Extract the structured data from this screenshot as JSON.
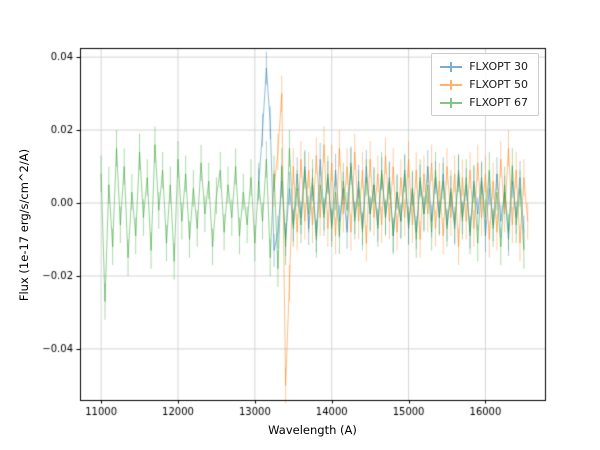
{
  "chart_data": {
    "type": "line",
    "title": "",
    "xlabel": "Wavelength (A)",
    "ylabel": "Flux (1e-17 erg/s/cm^2/A)",
    "xlim": [
      10725,
      16775
    ],
    "ylim": [
      -0.054,
      0.0425
    ],
    "xticks": [
      11000,
      12000,
      13000,
      14000,
      15000,
      16000
    ],
    "yticks": [
      -0.04,
      -0.02,
      0.0,
      0.02,
      0.04
    ],
    "grid": true,
    "grid_color": "#cccccc",
    "legend_position": "upper right",
    "series": [
      {
        "name": "FLXOPT 30",
        "color": "#1f77b4",
        "alpha": 0.5,
        "x_start": 13050,
        "x_step": 50,
        "yerr": 0.0045,
        "values": [
          0.005,
          0.02,
          0.037,
          0.022,
          -0.013,
          -0.008,
          0.006,
          -0.01,
          0.004,
          -0.006,
          0.008,
          -0.004,
          0.01,
          -0.007,
          0.005,
          -0.009,
          0.012,
          -0.003,
          0.007,
          -0.006,
          0.009,
          -0.005,
          0.004,
          -0.008,
          0.011,
          -0.004,
          0.006,
          -0.007,
          0.01,
          -0.003,
          0.005,
          -0.006,
          0.008,
          -0.004,
          0.007,
          -0.009,
          0.003,
          -0.005,
          0.009,
          -0.007,
          0.004,
          -0.008,
          0.006,
          -0.003,
          0.01,
          -0.005,
          0.007,
          -0.004,
          0.008,
          -0.006,
          0.003,
          -0.007,
          0.009,
          -0.004,
          0.005,
          -0.008,
          0.006,
          -0.003,
          0.007,
          -0.009,
          0.004,
          -0.006,
          0.008,
          -0.005,
          0.003,
          -0.01,
          0.006,
          -0.004,
          0.007,
          -0.008
        ]
      },
      {
        "name": "FLXOPT 50",
        "color": "#ff7f0e",
        "alpha": 0.5,
        "x_start": 13250,
        "x_step": 50,
        "yerr": 0.005,
        "values": [
          0.004,
          0.014,
          0.03,
          -0.05,
          -0.022,
          0.01,
          -0.008,
          0.012,
          -0.005,
          0.009,
          -0.006,
          0.013,
          -0.004,
          0.016,
          -0.007,
          0.011,
          -0.009,
          0.015,
          -0.003,
          0.01,
          -0.008,
          0.014,
          -0.005,
          0.009,
          -0.011,
          0.012,
          -0.004,
          0.008,
          -0.006,
          0.013,
          -0.005,
          0.01,
          -0.008,
          0.007,
          -0.004,
          0.012,
          -0.006,
          0.009,
          -0.01,
          0.008,
          -0.003,
          0.011,
          -0.007,
          0.006,
          -0.009,
          0.01,
          -0.004,
          0.008,
          -0.012,
          0.007,
          -0.005,
          0.009,
          -0.007,
          0.011,
          -0.004,
          0.008,
          -0.01,
          0.006,
          -0.008,
          0.012,
          -0.003,
          0.015,
          -0.006,
          0.009,
          -0.011,
          0.007,
          -0.005
        ]
      },
      {
        "name": "FLXOPT 67",
        "color": "#2ca02c",
        "alpha": 0.5,
        "x_start": 11000,
        "x_step": 50,
        "yerr": 0.005,
        "values": [
          0.008,
          -0.027,
          0.005,
          -0.012,
          0.015,
          -0.006,
          0.01,
          -0.015,
          0.003,
          -0.009,
          0.014,
          -0.004,
          0.007,
          -0.013,
          0.016,
          -0.002,
          0.009,
          -0.011,
          0.005,
          -0.016,
          0.012,
          -0.005,
          0.008,
          -0.01,
          0.004,
          -0.007,
          0.011,
          -0.003,
          0.006,
          -0.012,
          0.002,
          0.009,
          -0.008,
          0.005,
          -0.004,
          0.01,
          -0.009,
          0.003,
          -0.006,
          0.007,
          -0.011,
          0.006,
          -0.005,
          0.012,
          -0.015,
          0.008,
          -0.018,
          0.01,
          -0.012,
          0.015,
          -0.007,
          0.004,
          -0.006,
          0.009,
          -0.003,
          0.007,
          -0.01,
          0.005,
          -0.004,
          0.008,
          -0.007,
          0.003,
          -0.009,
          0.006,
          -0.002,
          0.01,
          -0.005,
          0.004,
          -0.008,
          0.007,
          -0.003,
          0.005,
          -0.007,
          0.009,
          -0.004,
          0.006,
          -0.009,
          0.003,
          -0.005,
          0.008,
          -0.006,
          0.004,
          -0.01,
          0.007,
          -0.003,
          0.005,
          -0.008,
          0.009,
          -0.004,
          0.006,
          -0.007,
          0.004,
          -0.006,
          0.008,
          -0.005,
          0.007,
          -0.009,
          0.005,
          -0.011,
          0.006,
          -0.004,
          0.009,
          -0.007,
          0.003,
          -0.012,
          0.005,
          -0.008,
          0.01,
          -0.006,
          0.004,
          -0.013
        ]
      }
    ]
  }
}
